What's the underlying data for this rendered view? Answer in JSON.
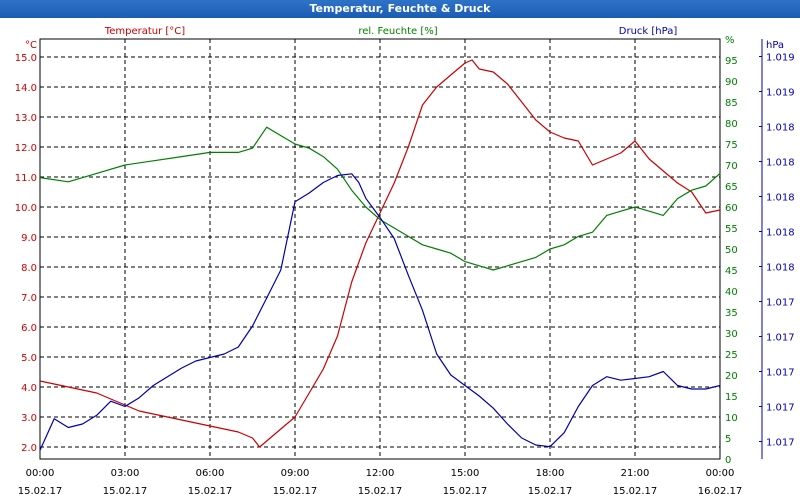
{
  "header": {
    "title": "Temperatur, Feuchte & Druck"
  },
  "colors": {
    "temperature": "#cc0000",
    "humidity": "#008000",
    "pressure": "#0000b0",
    "titlebar": "#1f64ba",
    "grid": "#000000"
  },
  "chart_data": {
    "type": "line",
    "title": "Temperatur, Feuchte & Druck",
    "grid": true,
    "x_axis": {
      "range": [
        "15.02.17 00:00",
        "16.02.17 00:00"
      ],
      "ticks": [
        {
          "time": "00:00",
          "date": "15.02.17"
        },
        {
          "time": "03:00",
          "date": "15.02.17"
        },
        {
          "time": "06:00",
          "date": "15.02.17"
        },
        {
          "time": "09:00",
          "date": "15.02.17"
        },
        {
          "time": "12:00",
          "date": "15.02.17"
        },
        {
          "time": "15:00",
          "date": "15.02.17"
        },
        {
          "time": "18:00",
          "date": "15.02.17"
        },
        {
          "time": "21:00",
          "date": "15.02.17"
        },
        {
          "time": "00:00",
          "date": "16.02.17"
        }
      ]
    },
    "y_axes": {
      "temperature": {
        "label": "Temperatur [°C]",
        "unit": "°C",
        "range": [
          1.6,
          15.6
        ],
        "ticks": [
          "2.0",
          "3.0",
          "4.0",
          "5.0",
          "6.0",
          "7.0",
          "8.0",
          "9.0",
          "10.0",
          "11.0",
          "12.0",
          "13.0",
          "14.0",
          "15.0"
        ]
      },
      "humidity": {
        "label": "rel. Feuchte [%]",
        "unit": "%",
        "range": [
          0,
          100
        ],
        "ticks": [
          "0",
          "5",
          "10",
          "15",
          "20",
          "25",
          "30",
          "35",
          "40",
          "45",
          "50",
          "55",
          "60",
          "65",
          "70",
          "75",
          "80",
          "85",
          "90",
          "95",
          "%"
        ]
      },
      "pressure": {
        "label": "Druck [hPa]",
        "unit": "hPa",
        "range": [
          1016.8,
          1019.2
        ],
        "ticks": [
          "1.017",
          "1.017",
          "1.017",
          "1.017",
          "1.017",
          "1.018",
          "1.018",
          "1.018",
          "1.018",
          "1.018",
          "1.019",
          "1.019"
        ]
      }
    },
    "series": [
      {
        "name": "Temperatur [°C]",
        "axis": "temperature",
        "x": [
          0,
          0.5,
          1,
          1.5,
          2,
          2.5,
          3,
          3.5,
          4,
          4.5,
          5,
          5.5,
          6,
          6.5,
          7,
          7.5,
          7.75,
          8,
          8.5,
          9,
          9.5,
          10,
          10.5,
          11,
          11.5,
          12,
          12.5,
          13,
          13.5,
          14,
          14.5,
          15,
          15.25,
          15.5,
          16,
          16.5,
          17,
          17.5,
          18,
          18.5,
          19,
          19.5,
          20,
          20.5,
          21,
          21.5,
          22,
          22.5,
          23,
          23.5,
          24
        ],
        "values": [
          4.2,
          4.1,
          4.0,
          3.9,
          3.8,
          3.6,
          3.4,
          3.2,
          3.1,
          3.0,
          2.9,
          2.8,
          2.7,
          2.6,
          2.5,
          2.3,
          2.0,
          2.2,
          2.6,
          3.0,
          3.8,
          4.6,
          5.7,
          7.5,
          8.8,
          9.8,
          10.8,
          12.0,
          13.4,
          14.0,
          14.4,
          14.8,
          14.9,
          14.6,
          14.5,
          14.1,
          13.5,
          12.9,
          12.5,
          12.3,
          12.2,
          11.4,
          11.6,
          11.8,
          12.2,
          11.6,
          11.2,
          10.8,
          10.5,
          9.8,
          9.9
        ]
      },
      {
        "name": "rel. Feuchte [%]",
        "axis": "humidity",
        "x": [
          0,
          1,
          2,
          3,
          4,
          5,
          6,
          7,
          7.5,
          8,
          8.5,
          9,
          9.5,
          10,
          10.5,
          11,
          11.5,
          12,
          12.5,
          13,
          13.5,
          14,
          14.5,
          15,
          15.5,
          16,
          16.5,
          17,
          17.5,
          18,
          18.5,
          19,
          19.5,
          20,
          20.5,
          21,
          21.5,
          22,
          22.5,
          23,
          23.5,
          24
        ],
        "values": [
          67,
          66,
          68,
          70,
          71,
          72,
          73,
          73,
          74,
          79,
          77,
          75,
          74,
          72,
          69,
          64,
          60,
          57,
          55,
          53,
          51,
          50,
          49,
          47,
          46,
          45,
          46,
          47,
          48,
          50,
          51,
          53,
          54,
          58,
          59,
          60,
          59,
          58,
          62,
          64,
          65,
          68
        ]
      },
      {
        "name": "Druck [hPa]",
        "axis": "pressure",
        "x": [
          0,
          0.5,
          1,
          1.5,
          2,
          2.5,
          3,
          3.5,
          4,
          4.5,
          5,
          5.5,
          6,
          6.5,
          7,
          7.5,
          8,
          8.5,
          9,
          9.5,
          10,
          10.5,
          11,
          11.25,
          11.5,
          12,
          12.5,
          13,
          13.5,
          14,
          14.5,
          15,
          15.5,
          16,
          16.5,
          17,
          17.5,
          18,
          18.5,
          19,
          19.5,
          20,
          20.5,
          21,
          21.5,
          22,
          22.5,
          23,
          23.5,
          24
        ],
        "values": [
          1016.85,
          1017.03,
          1016.98,
          1017.0,
          1017.05,
          1017.13,
          1017.1,
          1017.15,
          1017.22,
          1017.27,
          1017.32,
          1017.36,
          1017.38,
          1017.4,
          1017.44,
          1017.56,
          1017.72,
          1017.88,
          1018.27,
          1018.32,
          1018.38,
          1018.42,
          1018.43,
          1018.38,
          1018.29,
          1018.18,
          1018.06,
          1017.85,
          1017.65,
          1017.4,
          1017.28,
          1017.22,
          1017.16,
          1017.09,
          1017.0,
          1016.92,
          1016.88,
          1016.87,
          1016.95,
          1017.1,
          1017.22,
          1017.27,
          1017.25,
          1017.26,
          1017.27,
          1017.3,
          1017.22,
          1017.2,
          1017.2,
          1017.22
        ]
      }
    ]
  }
}
